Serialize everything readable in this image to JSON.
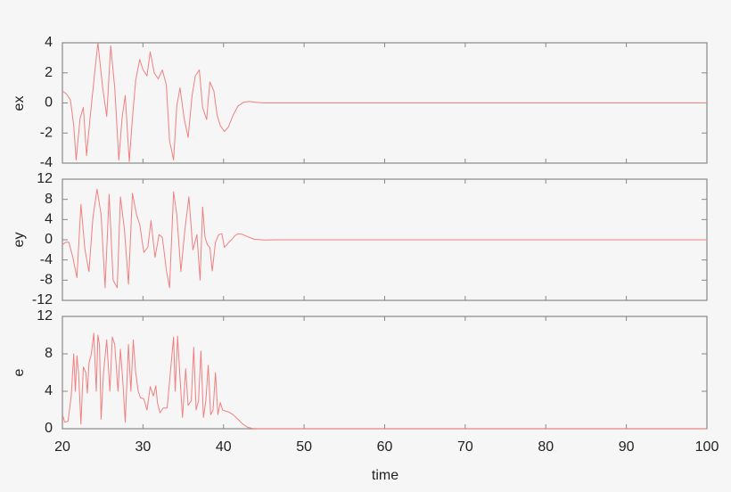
{
  "chart_data": [
    {
      "type": "line",
      "panel": "top",
      "title": "",
      "xlabel": "",
      "ylabel": "ex",
      "xlim": [
        20,
        100
      ],
      "ylim": [
        -4,
        4
      ],
      "yticks": [
        -4,
        -2,
        0,
        2,
        4
      ],
      "xticks": [
        20,
        30,
        40,
        50,
        60,
        70,
        80,
        90,
        100
      ],
      "grid": false,
      "series": [
        {
          "name": "ex",
          "color": "#f08080",
          "x": [
            20,
            20.5,
            21,
            21.4,
            21.7,
            22.2,
            22.6,
            23,
            23.4,
            24,
            24.4,
            25,
            25.5,
            26,
            26.5,
            27,
            27.4,
            27.8,
            28.3,
            28.7,
            29.1,
            29.6,
            30,
            30.5,
            30.9,
            31.4,
            31.9,
            32.4,
            32.9,
            33.3,
            33.8,
            34.2,
            34.6,
            35.1,
            35.6,
            36.1,
            36.5,
            37,
            37.4,
            37.9,
            38.3,
            38.8,
            39.2,
            39.6,
            40.1,
            40.6,
            41.2,
            41.8,
            42.5,
            43.2,
            44,
            45,
            46,
            50,
            60,
            70,
            80,
            90,
            100
          ],
          "y": [
            0.8,
            0.6,
            0.2,
            -1.5,
            -3.8,
            -1.0,
            -0.3,
            -3.5,
            -1.2,
            2.0,
            4.0,
            1.0,
            -0.9,
            3.8,
            1.0,
            -3.8,
            -1.0,
            0.5,
            -3.9,
            -1.0,
            1.5,
            2.9,
            2.2,
            1.8,
            3.4,
            2.0,
            1.6,
            2.2,
            1.2,
            -2.5,
            -3.8,
            -0.2,
            1.0,
            -1.0,
            -2.3,
            0.5,
            1.8,
            2.2,
            -0.3,
            -1.1,
            1.4,
            0.8,
            -0.8,
            -1.5,
            -1.9,
            -1.6,
            -0.8,
            -0.2,
            0.05,
            0.1,
            0.05,
            0.0,
            0.0,
            0.0,
            0.0,
            0.0,
            0.0,
            0.0,
            0.0
          ]
        }
      ]
    },
    {
      "type": "line",
      "panel": "middle",
      "title": "",
      "xlabel": "",
      "ylabel": "ey",
      "xlim": [
        20,
        100
      ],
      "ylim": [
        -12,
        12
      ],
      "yticks": [
        -12,
        -8,
        -4,
        0,
        4,
        8,
        12
      ],
      "xticks": [
        20,
        30,
        40,
        50,
        60,
        70,
        80,
        90,
        100
      ],
      "grid": false,
      "series": [
        {
          "name": "ey",
          "color": "#f08080",
          "x": [
            20,
            20.4,
            20.8,
            21.3,
            21.8,
            22.3,
            22.8,
            23.3,
            23.8,
            24.3,
            24.8,
            25.3,
            25.8,
            26.3,
            26.8,
            27.2,
            27.7,
            28.2,
            28.7,
            29.2,
            29.6,
            30.1,
            30.6,
            31.0,
            31.5,
            32.0,
            32.4,
            32.9,
            33.3,
            33.8,
            34.2,
            34.7,
            35.2,
            35.7,
            36.2,
            36.7,
            37.1,
            37.4,
            37.7,
            38.0,
            38.3,
            38.6,
            39.0,
            39.4,
            39.8,
            40.1,
            40.4,
            40.7,
            41.0,
            41.4,
            41.8,
            42.3,
            43,
            43.8,
            45,
            46.5,
            50,
            60,
            70,
            80,
            90,
            100
          ],
          "y": [
            -1.0,
            -0.5,
            -0.5,
            -3.5,
            -7.5,
            7.0,
            -2.0,
            -6.3,
            4.5,
            10.0,
            5.0,
            -9.5,
            9.0,
            -8.0,
            -9.5,
            8.5,
            2.0,
            -8.8,
            9.2,
            5.0,
            3.0,
            -2.5,
            -1.5,
            3.8,
            -3.5,
            1.0,
            0.5,
            -6.0,
            -9.5,
            9.5,
            5.0,
            -6.3,
            2.0,
            8.5,
            -2.0,
            1.0,
            -8.0,
            6.5,
            0.5,
            -1.0,
            -1.5,
            -6.2,
            -0.5,
            1.0,
            1.2,
            -1.5,
            -1.0,
            -0.4,
            0.0,
            0.8,
            1.2,
            1.1,
            0.6,
            0.1,
            -0.05,
            0.0,
            0.0,
            0.0,
            0.0,
            0.0,
            0.0,
            0.0
          ]
        }
      ]
    },
    {
      "type": "line",
      "panel": "bottom",
      "title": "",
      "xlabel": "time",
      "ylabel": "e",
      "xlim": [
        20,
        100
      ],
      "ylim": [
        0,
        12
      ],
      "yticks": [
        0,
        4,
        8,
        12
      ],
      "xticks": [
        20,
        30,
        40,
        50,
        60,
        70,
        80,
        90,
        100
      ],
      "grid": false,
      "series": [
        {
          "name": "e",
          "color": "#f08080",
          "x": [
            20,
            20.3,
            20.7,
            21.1,
            21.4,
            21.6,
            21.8,
            22.0,
            22.3,
            22.6,
            22.9,
            23.1,
            23.3,
            23.6,
            23.9,
            24.2,
            24.4,
            24.6,
            24.8,
            25.1,
            25.5,
            25.9,
            26.2,
            26.5,
            26.9,
            27.2,
            27.5,
            27.8,
            28.2,
            28.5,
            28.8,
            29.1,
            29.4,
            29.7,
            30.1,
            30.5,
            30.9,
            31.3,
            31.6,
            31.8,
            32.1,
            32.5,
            33.0,
            33.4,
            33.8,
            34.0,
            34.3,
            34.6,
            34.9,
            35.3,
            35.6,
            36.0,
            36.3,
            36.6,
            36.9,
            37.2,
            37.5,
            37.8,
            38.1,
            38.4,
            38.7,
            39.0,
            39.3,
            39.6,
            39.9,
            40.2,
            40.6,
            41.2,
            41.8,
            42.4,
            43.0,
            43.6,
            44.2,
            45.0,
            50,
            60,
            70,
            80,
            90,
            100
          ],
          "y": [
            1.5,
            0.7,
            0.8,
            3.5,
            8.0,
            4.0,
            7.8,
            6.0,
            0.5,
            6.6,
            6.0,
            3.8,
            7.0,
            8.0,
            10.2,
            4.0,
            10.0,
            9.0,
            1.0,
            6.0,
            9.5,
            4.0,
            9.8,
            9.0,
            4.0,
            8.5,
            5.0,
            0.7,
            9.0,
            4.0,
            9.5,
            6.0,
            4.0,
            3.3,
            3.2,
            2.0,
            4.5,
            3.5,
            4.6,
            2.8,
            1.7,
            2.2,
            2.2,
            6.0,
            9.8,
            4.0,
            9.9,
            5.5,
            1.2,
            6.4,
            2.5,
            3.0,
            8.7,
            2.0,
            3.0,
            8.3,
            1.2,
            3.0,
            6.8,
            1.5,
            2.0,
            6.0,
            1.5,
            2.8,
            2.0,
            1.9,
            1.8,
            1.5,
            1.0,
            0.5,
            0.15,
            0.03,
            0.0,
            0.0,
            0.0,
            0.0,
            0.0,
            0.0,
            0.0,
            0.0
          ]
        }
      ]
    }
  ],
  "labels": {
    "panel1_ylabel": "ex",
    "panel2_ylabel": "ey",
    "panel3_ylabel": "e",
    "xlabel": "time"
  }
}
